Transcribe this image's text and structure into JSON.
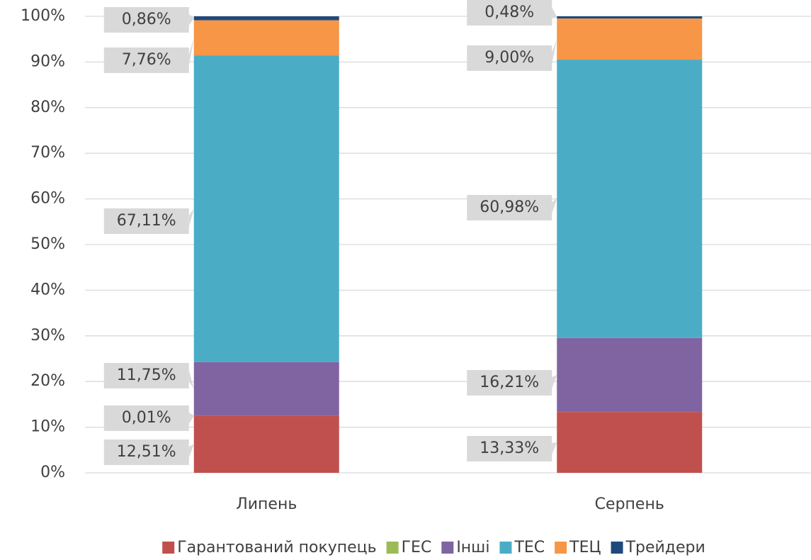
{
  "chart_data": {
    "type": "stacked_bar",
    "categories": [
      "Липень",
      "Серпень"
    ],
    "series": [
      {
        "name": "Гарантований покупець",
        "color": "#c0504d",
        "values": [
          12.51,
          13.33
        ],
        "value_labels": [
          "12,51%",
          "13,33%"
        ]
      },
      {
        "name": "ГЕС",
        "color": "#9bbb59",
        "values": [
          0.01,
          null
        ],
        "value_labels": [
          "0,01%",
          null
        ]
      },
      {
        "name": "Інші",
        "color": "#8064a2",
        "values": [
          11.75,
          16.21
        ],
        "value_labels": [
          "11,75%",
          "16,21%"
        ]
      },
      {
        "name": "ТЕС",
        "color": "#4bacc6",
        "values": [
          67.11,
          60.98
        ],
        "value_labels": [
          "67,11%",
          "60,98%"
        ]
      },
      {
        "name": "ТЕЦ",
        "color": "#f79646",
        "values": [
          7.76,
          9.0
        ],
        "value_labels": [
          "7,76%",
          "9,00%"
        ]
      },
      {
        "name": "Трейдери",
        "color": "#1f497d",
        "values": [
          0.86,
          0.48
        ],
        "value_labels": [
          "0,86%",
          "0,48%"
        ]
      }
    ],
    "ylim": [
      0,
      100
    ],
    "yticks": [
      {
        "value": 0,
        "label": "0%"
      },
      {
        "value": 10,
        "label": "10%"
      },
      {
        "value": 20,
        "label": "20%"
      },
      {
        "value": 30,
        "label": "30%"
      },
      {
        "value": 40,
        "label": "40%"
      },
      {
        "value": 50,
        "label": "50%"
      },
      {
        "value": 60,
        "label": "60%"
      },
      {
        "value": 70,
        "label": "70%"
      },
      {
        "value": 80,
        "label": "80%"
      },
      {
        "value": 90,
        "label": "90%"
      },
      {
        "value": 100,
        "label": "100%"
      }
    ],
    "grid": true,
    "legend": "bottom"
  }
}
